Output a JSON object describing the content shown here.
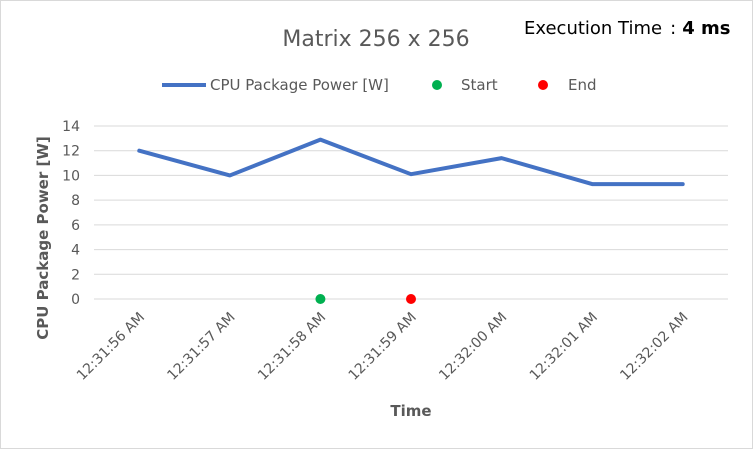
{
  "execution": {
    "label": "Execution Time",
    "separator": ":",
    "value": "4 ms"
  },
  "colors": {
    "power_line": "#4472c4",
    "start": "#00b050",
    "end": "#ff0000",
    "grid": "#d9d9d9"
  },
  "chart_data": {
    "type": "line",
    "title": "Matrix 256 x 256",
    "xlabel": "Time",
    "ylabel": "CPU Package Power [W]",
    "ylim": [
      0,
      14
    ],
    "yticks": [
      0,
      2,
      4,
      6,
      8,
      10,
      12,
      14
    ],
    "grid": true,
    "legend_position": "top",
    "categories": [
      "12:31:56 AM",
      "12:31:57 AM",
      "12:31:58 AM",
      "12:31:59 AM",
      "12:32:00 AM",
      "12:32:01 AM",
      "12:32:02 AM"
    ],
    "series": [
      {
        "name": "CPU Package Power [W]",
        "kind": "line",
        "values": [
          12.0,
          10.0,
          12.9,
          10.1,
          11.4,
          9.3,
          9.3
        ]
      },
      {
        "name": "Start",
        "kind": "marker",
        "points": [
          {
            "x": "12:31:58 AM",
            "y": 0
          }
        ]
      },
      {
        "name": "End",
        "kind": "marker",
        "points": [
          {
            "x": "12:31:59 AM",
            "y": 0
          }
        ]
      }
    ]
  }
}
